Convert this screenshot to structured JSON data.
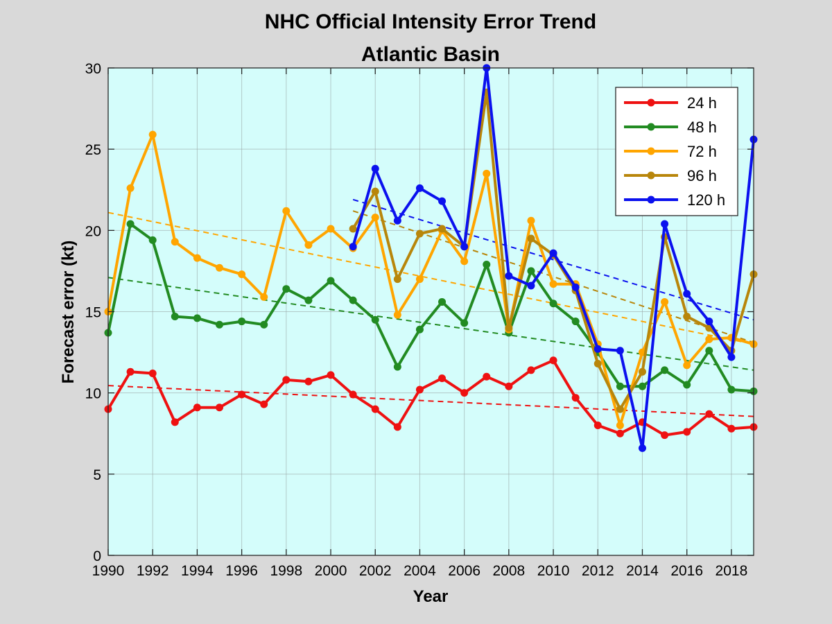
{
  "chart_data": {
    "type": "line",
    "title": "NHC Official Intensity Error Trend",
    "subtitle": "Atlantic Basin",
    "xlabel": "Year",
    "ylabel": "Forecast error (kt)",
    "xlim": [
      1990,
      2019
    ],
    "ylim": [
      0,
      30
    ],
    "xticks": [
      1990,
      1992,
      1994,
      1996,
      1998,
      2000,
      2002,
      2004,
      2006,
      2008,
      2010,
      2012,
      2014,
      2016,
      2018
    ],
    "yticks": [
      0,
      5,
      10,
      15,
      20,
      25,
      30
    ],
    "grid": true,
    "legend_position": "top-right",
    "background_color": "#d4fdfb",
    "figure_color": "#d9d9d9",
    "series": [
      {
        "name": "24 h",
        "color": "#ee1111",
        "x": [
          1990,
          1991,
          1992,
          1993,
          1994,
          1995,
          1996,
          1997,
          1998,
          1999,
          2000,
          2001,
          2002,
          2003,
          2004,
          2005,
          2006,
          2007,
          2008,
          2009,
          2010,
          2011,
          2012,
          2013,
          2014,
          2015,
          2016,
          2017,
          2018,
          2019
        ],
        "values": [
          9.0,
          11.3,
          11.2,
          8.2,
          9.1,
          9.1,
          9.9,
          9.3,
          10.8,
          10.7,
          11.1,
          9.9,
          9.0,
          7.9,
          10.2,
          10.9,
          10.0,
          11.0,
          10.4,
          11.4,
          12.0,
          9.7,
          8.0,
          7.5,
          8.2,
          7.4,
          7.6,
          8.7,
          7.8,
          7.9
        ],
        "trend": [
          10.45,
          8.55
        ]
      },
      {
        "name": "48 h",
        "color": "#228b22",
        "x": [
          1990,
          1991,
          1992,
          1993,
          1994,
          1995,
          1996,
          1997,
          1998,
          1999,
          2000,
          2001,
          2002,
          2003,
          2004,
          2005,
          2006,
          2007,
          2008,
          2009,
          2010,
          2011,
          2012,
          2013,
          2014,
          2015,
          2016,
          2017,
          2018,
          2019
        ],
        "values": [
          13.7,
          20.4,
          19.4,
          14.7,
          14.6,
          14.2,
          14.4,
          14.2,
          16.4,
          15.7,
          16.9,
          15.7,
          14.5,
          11.6,
          13.9,
          15.6,
          14.3,
          17.9,
          13.7,
          17.5,
          15.5,
          14.4,
          12.5,
          10.4,
          10.4,
          11.4,
          10.5,
          12.6,
          10.2,
          10.1
        ],
        "trend": [
          17.1,
          11.4
        ]
      },
      {
        "name": "72 h",
        "color": "#ffa500",
        "x": [
          1990,
          1991,
          1992,
          1993,
          1994,
          1995,
          1996,
          1997,
          1998,
          1999,
          2000,
          2001,
          2002,
          2003,
          2004,
          2005,
          2006,
          2007,
          2008,
          2009,
          2010,
          2011,
          2012,
          2013,
          2014,
          2015,
          2016,
          2017,
          2018,
          2019
        ],
        "values": [
          15.0,
          22.6,
          25.9,
          19.3,
          18.3,
          17.7,
          17.3,
          15.9,
          21.2,
          19.1,
          20.1,
          18.9,
          20.8,
          14.8,
          17.0,
          20.0,
          18.1,
          23.5,
          13.9,
          20.6,
          16.7,
          16.7,
          13.0,
          8.0,
          12.5,
          15.6,
          11.7,
          13.3,
          13.4,
          13.0
        ],
        "trend": [
          21.1,
          13.0
        ]
      },
      {
        "name": "96 h",
        "color": "#b8860b",
        "x": [
          2001,
          2002,
          2003,
          2004,
          2005,
          2006,
          2007,
          2008,
          2009,
          2010,
          2011,
          2012,
          2013,
          2014,
          2015,
          2016,
          2017,
          2018,
          2019
        ],
        "values": [
          20.1,
          22.4,
          17.0,
          19.8,
          20.1,
          19.0,
          28.5,
          14.0,
          19.5,
          18.5,
          16.3,
          11.8,
          9.0,
          11.3,
          19.6,
          14.7,
          14.0,
          12.6,
          17.3
        ],
        "trend": [
          21.2,
          13.1
        ]
      },
      {
        "name": "120 h",
        "color": "#0b11ee",
        "x": [
          2001,
          2002,
          2003,
          2004,
          2005,
          2006,
          2007,
          2008,
          2009,
          2010,
          2011,
          2012,
          2013,
          2014,
          2015,
          2016,
          2017,
          2018,
          2019
        ],
        "values": [
          19.0,
          23.8,
          20.6,
          22.6,
          21.8,
          19.0,
          30.0,
          17.2,
          16.6,
          18.6,
          16.5,
          12.7,
          12.6,
          6.6,
          20.4,
          16.1,
          14.4,
          12.2,
          25.6
        ],
        "trend": [
          21.9,
          14.5
        ]
      }
    ]
  }
}
